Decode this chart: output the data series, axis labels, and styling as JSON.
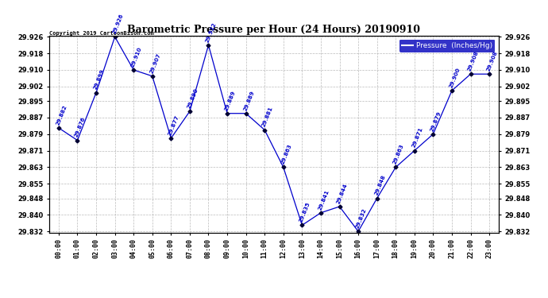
{
  "title": "Barometric Pressure per Hour (24 Hours) 20190910",
  "hours": [
    "00:00",
    "01:00",
    "02:00",
    "03:00",
    "04:00",
    "05:00",
    "06:00",
    "07:00",
    "08:00",
    "09:00",
    "10:00",
    "11:00",
    "12:00",
    "13:00",
    "14:00",
    "15:00",
    "16:00",
    "17:00",
    "18:00",
    "19:00",
    "20:00",
    "21:00",
    "22:00",
    "23:00"
  ],
  "values": [
    29.882,
    29.876,
    29.899,
    29.926,
    29.91,
    29.907,
    29.877,
    29.89,
    29.922,
    29.889,
    29.889,
    29.881,
    29.863,
    29.835,
    29.841,
    29.844,
    29.832,
    29.848,
    29.863,
    29.871,
    29.879,
    29.9,
    29.908,
    29.908
  ],
  "yticks": [
    29.832,
    29.84,
    29.848,
    29.855,
    29.863,
    29.871,
    29.879,
    29.887,
    29.895,
    29.902,
    29.91,
    29.918,
    29.926
  ],
  "line_color": "#0000cc",
  "marker_color": "#000033",
  "label_color": "#0000cc",
  "bg_color": "#ffffff",
  "grid_color": "#aaaaaa",
  "title_color": "#000000",
  "copyright_text": "Copyright 2019 CartoonBison.com",
  "legend_label": "Pressure  (Inches/Hg)",
  "legend_bg": "#0000bb",
  "legend_text_color": "#ffffff"
}
